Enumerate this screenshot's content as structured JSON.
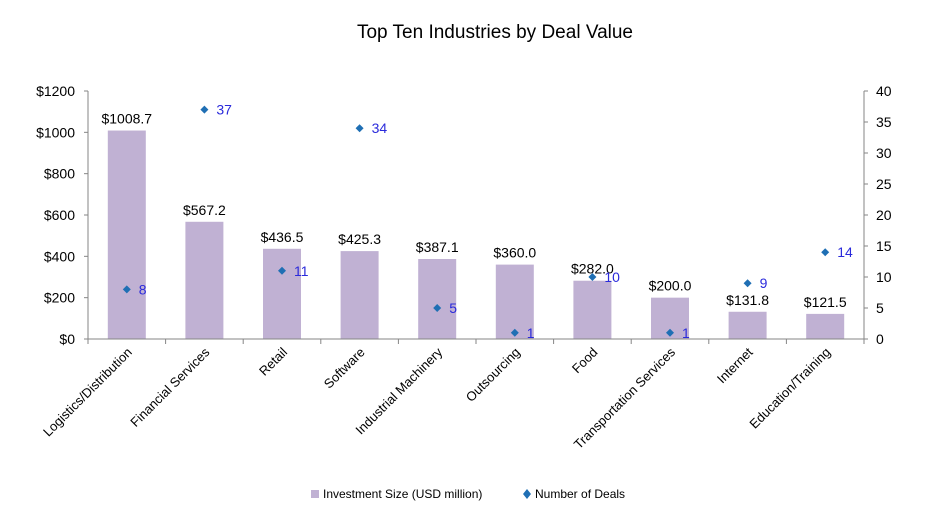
{
  "chart_data": {
    "type": "bar",
    "title": "Top Ten Industries by Deal Value",
    "categories": [
      "Logistics/Distribution",
      "Financial Services",
      "Retail",
      "Software",
      "Industrial Machinery",
      "Outsourcing",
      "Food",
      "Transportation Services",
      "Internet",
      "Education/Training"
    ],
    "series": [
      {
        "name": "Investment Size (USD million)",
        "type": "bar",
        "axis": "left",
        "color": "#c0b1d3",
        "values": [
          1008.7,
          567.2,
          436.5,
          425.3,
          387.1,
          360.0,
          282.0,
          200.0,
          131.8,
          121.5
        ],
        "labels": [
          "$1008.7",
          "$567.2",
          "$436.5",
          "$425.3",
          "$387.1",
          "$360.0",
          "$282.0",
          "$200.0",
          "$131.8",
          "$121.5"
        ]
      },
      {
        "name": "Number of Deals",
        "type": "scatter",
        "axis": "right",
        "color": "#1f6fb4",
        "label_color": "#2a2adb",
        "values": [
          8,
          37,
          11,
          34,
          5,
          1,
          10,
          1,
          9,
          14
        ],
        "labels": [
          "8",
          "37",
          "11",
          "34",
          "5",
          "1",
          "10",
          "1",
          "9",
          "14"
        ]
      }
    ],
    "y_left": {
      "min": 0,
      "max": 1200,
      "ticks": [
        0,
        200,
        400,
        600,
        800,
        1000,
        1200
      ],
      "tick_labels": [
        "$0",
        "$200",
        "$400",
        "$600",
        "$800",
        "$1000",
        "$1200"
      ]
    },
    "y_right": {
      "min": 0,
      "max": 40,
      "ticks": [
        0,
        5,
        10,
        15,
        20,
        25,
        30,
        35,
        40
      ],
      "tick_labels": [
        "0",
        "5",
        "10",
        "15",
        "20",
        "25",
        "30",
        "35",
        "40"
      ]
    },
    "xlabel": "",
    "ylabel": "",
    "grid": false,
    "legend_position": "bottom"
  }
}
